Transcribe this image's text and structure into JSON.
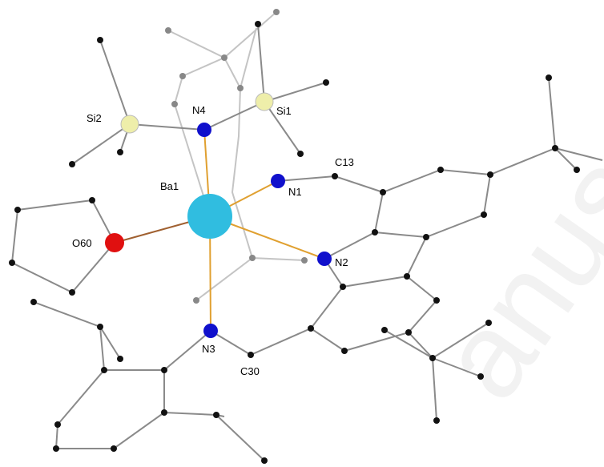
{
  "atom_labels": [
    "Si2",
    "N4",
    "Si1",
    "C13",
    "N1",
    "Ba1",
    "O60",
    "N2",
    "N3",
    "C30"
  ],
  "watermark": "anus"
}
